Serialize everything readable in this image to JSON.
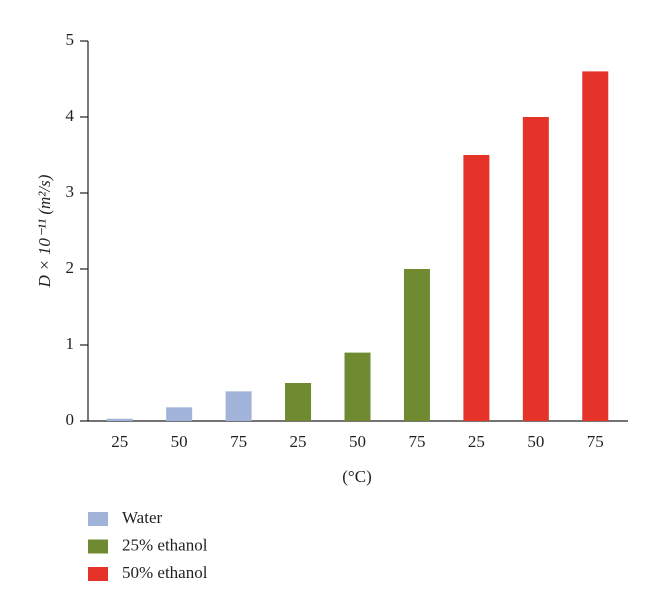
{
  "chart_data": {
    "type": "bar",
    "ylabel": "D × 10⁻¹¹ (m²/s)",
    "xlabel": "(°C)",
    "categories": [
      "25",
      "50",
      "75",
      "25",
      "50",
      "75",
      "25",
      "50",
      "75"
    ],
    "series": [
      {
        "name": "Water",
        "color": "#a2b3d9",
        "values": [
          0.03,
          0.18,
          0.39,
          null,
          null,
          null,
          null,
          null,
          null
        ]
      },
      {
        "name": "25% ethanol",
        "color": "#6f8a30",
        "values": [
          null,
          null,
          null,
          0.5,
          0.9,
          2.0,
          null,
          null,
          null
        ]
      },
      {
        "name": "50% ethanol",
        "color": "#e5332a",
        "values": [
          null,
          null,
          null,
          null,
          null,
          null,
          3.5,
          4.0,
          4.6
        ]
      }
    ],
    "ylim": [
      0,
      5
    ],
    "yticks": [
      0,
      1,
      2,
      3,
      4,
      5
    ]
  }
}
